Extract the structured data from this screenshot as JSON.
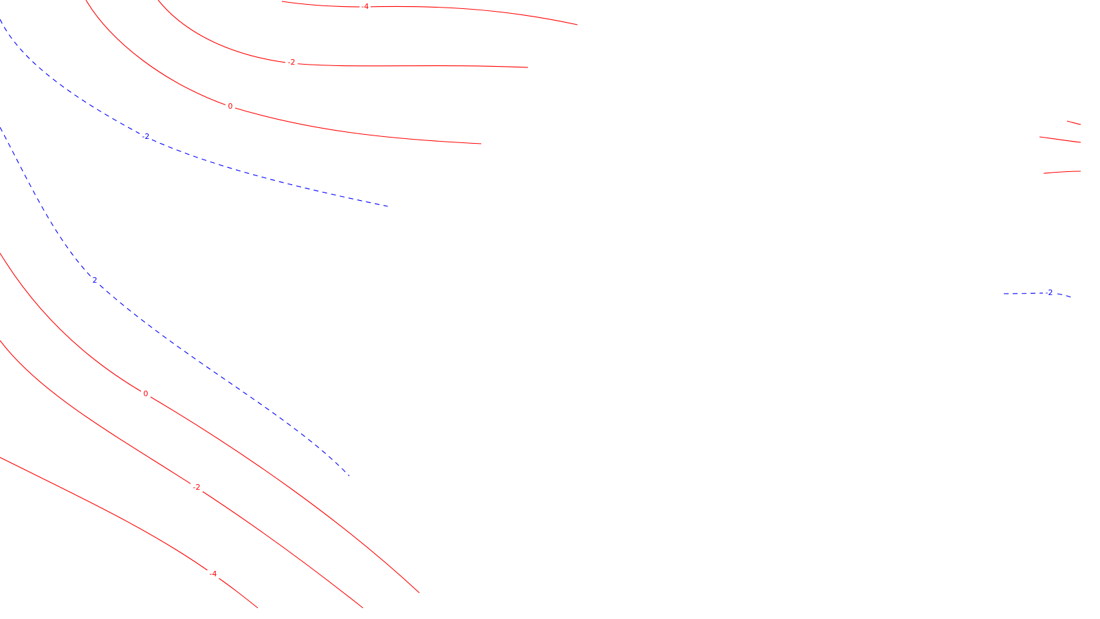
{
  "map": {
    "colors": {
      "solid": "#ff0000",
      "dashed": "#0000ff",
      "background": "#ffffff"
    },
    "contours": [
      {
        "label": "-4",
        "style": "solid"
      },
      {
        "label": "-2",
        "style": "solid"
      },
      {
        "label": "0",
        "style": "solid"
      },
      {
        "label": "-2",
        "style": "dashed"
      },
      {
        "label": "2",
        "style": "dashed"
      },
      {
        "label": "0",
        "style": "solid"
      },
      {
        "label": "-2",
        "style": "solid"
      },
      {
        "label": "-4",
        "style": "solid"
      },
      {
        "label": "",
        "style": "solid"
      },
      {
        "label": "",
        "style": "solid"
      },
      {
        "label": "",
        "style": "solid"
      },
      {
        "label": "-2",
        "style": "dashed"
      }
    ]
  }
}
